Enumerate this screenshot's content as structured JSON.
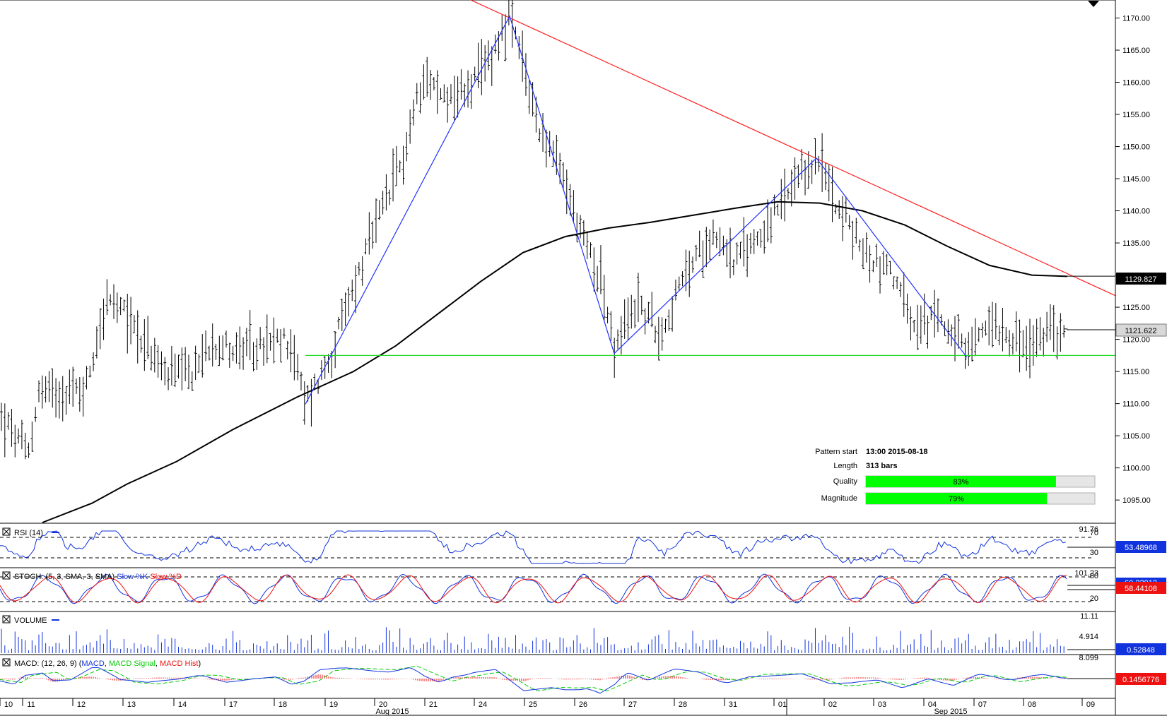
{
  "chart_data": {
    "type": "ohlc",
    "symbol_period": "hourly",
    "main": {
      "y_ticks": [
        "1170.00",
        "1165.00",
        "1160.00",
        "1155.00",
        "1150.00",
        "1145.00",
        "1140.00",
        "1135.00",
        "1130.00",
        "1125.00",
        "1120.00",
        "1115.00",
        "1110.00",
        "1105.00",
        "1100.00",
        "1095.00"
      ],
      "ylim": [
        1091.5,
        1172.8
      ],
      "current_price": "1121.622",
      "ma_value": "1129.827",
      "support_level": 1117.5,
      "resistance_line": {
        "from_price": 1173.1,
        "to_price": 1126.8
      },
      "zigzag_prices": [
        1109.9,
        1170.3,
        1117.8,
        1148.2,
        1117.2
      ],
      "colors": {
        "resistance": "#ff2020",
        "support": "#22dd22",
        "zigzag": "#2233ff",
        "ma": "#000000",
        "bars": "#000000"
      }
    },
    "pattern_info": {
      "pattern_start_label": "Pattern start",
      "pattern_start_value": "13:00 2015-08-18",
      "length_label": "Length",
      "length_value": "313 bars",
      "quality_label": "Quality",
      "quality_pct": 83,
      "quality_text": "83%",
      "magnitude_label": "Magnitude",
      "magnitude_pct": 79,
      "magnitude_text": "79%",
      "bar_color": "#00ff00"
    },
    "rsi": {
      "label": "RSI (14)",
      "top_tick": "91.76",
      "levels": [
        "70",
        "30"
      ],
      "value": "53.48968",
      "value_color": "#1133dd"
    },
    "stoch": {
      "prefix": "STOCH: (5, 3, SMA, 3, SMA)",
      "k_label": "Slow %K",
      "d_label": "Slow %D",
      "top_tick": "101.23",
      "levels": [
        "80",
        "20"
      ],
      "value_k": "60.22912",
      "value_d": "58.44108",
      "k_color": "#1133dd",
      "d_color": "#ee1111"
    },
    "volume": {
      "label": "VOLUME",
      "ticks": [
        "11.11",
        "4.914"
      ],
      "value": "0.52848",
      "color": "#1133dd"
    },
    "macd": {
      "prefix": "MACD: (12, 26, 9)",
      "macd_label": "MACD",
      "signal_label": "MACD Signal",
      "hist_label": "MACD Hist",
      "top_tick": "8.099",
      "value": "0.1456776",
      "macd_color": "#1133dd",
      "signal_color": "#00cc00",
      "hist_color": "#ee1111"
    },
    "x_axis": {
      "day_labels": [
        "10",
        "11",
        "12",
        "13",
        "14",
        "17",
        "18",
        "19",
        "20",
        "21",
        "24",
        "25",
        "26",
        "27",
        "28",
        "31",
        "01",
        "02",
        "03",
        "04",
        "07",
        "08",
        "09"
      ],
      "month_labels": [
        "Aug 2015",
        "Sep 2015"
      ]
    }
  }
}
